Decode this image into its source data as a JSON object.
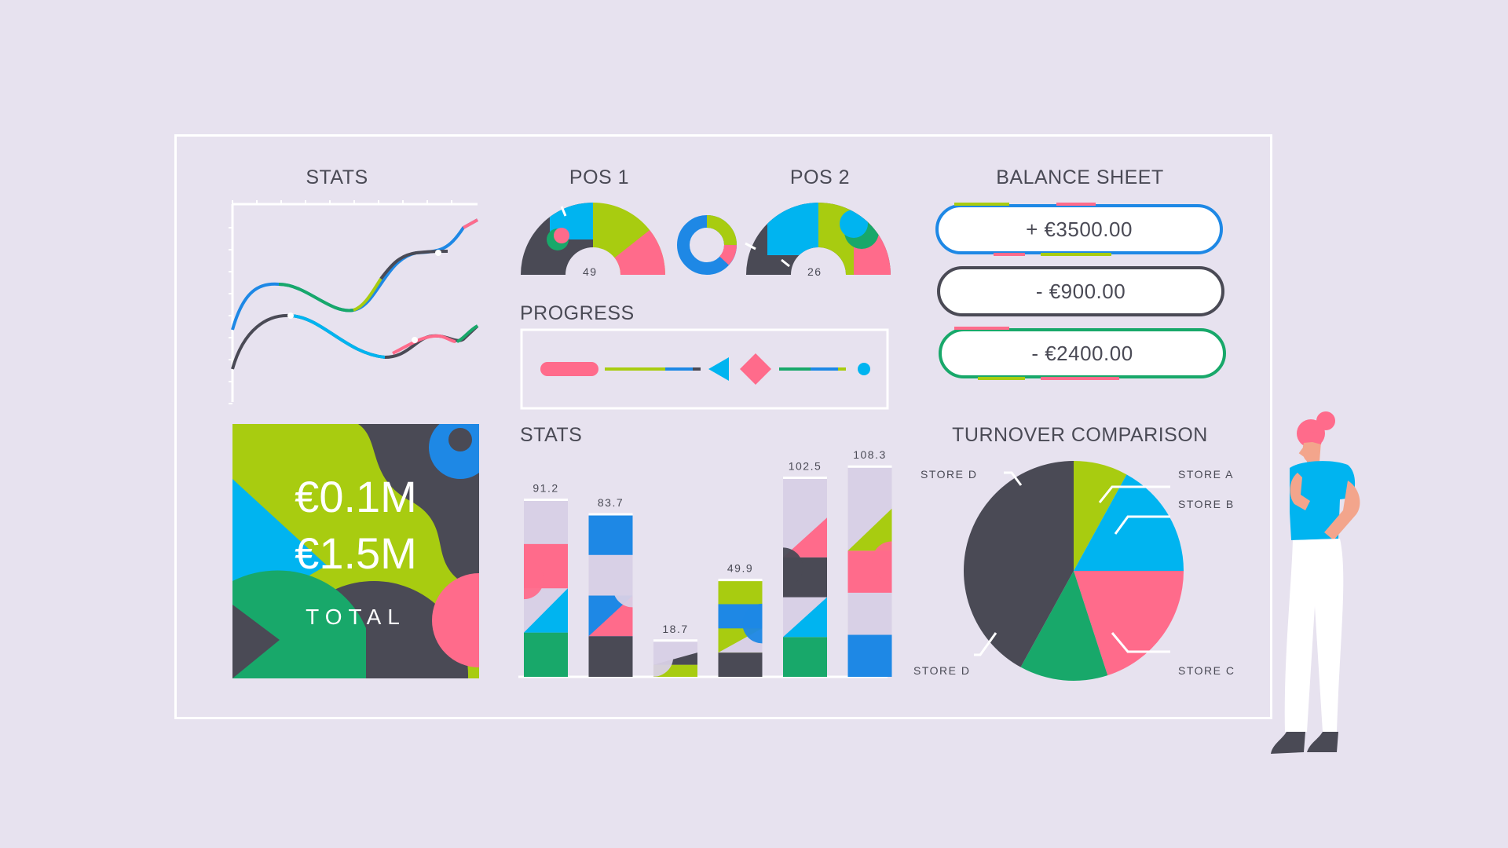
{
  "titles": {
    "stats_line": "STATS",
    "pos1": "POS 1",
    "pos2": "POS 2",
    "balance": "BALANCE SHEET",
    "progress": "PROGRESS",
    "stats_bar": "STATS",
    "turnover": "TURNOVER COMPARISON"
  },
  "gauges": {
    "pos1_value": "49",
    "pos2_value": "26"
  },
  "balance_items": [
    "+ €3500.00",
    "- €900.00",
    "- €2400.00"
  ],
  "totals": {
    "line1": "€0.1M",
    "line2": "€1.5M",
    "label": "TOTAL"
  },
  "pie_labels": {
    "store_a": "STORE A",
    "store_b": "STORE B",
    "store_c": "STORE C",
    "store_d_top": "STORE D",
    "store_d_bottom": "STORE D"
  },
  "colors": {
    "lime": "#a8cc10",
    "blue": "#1e88e5",
    "cyan": "#00b4f0",
    "pink": "#ff6b8b",
    "green": "#18a86a",
    "dark": "#4a4a55",
    "lavender": "#d8d0e6"
  },
  "chart_data": [
    {
      "type": "bar",
      "title": "STATS",
      "categories": [
        "",
        "",
        "",
        "",
        "",
        ""
      ],
      "values": [
        91.2,
        83.7,
        18.7,
        49.9,
        102.5,
        108.3
      ],
      "ylim": [
        0,
        110
      ]
    },
    {
      "type": "pie",
      "title": "TURNOVER COMPARISON",
      "categories": [
        "STORE A",
        "STORE B",
        "STORE C",
        "STORE D",
        "STORE D"
      ],
      "values": [
        8,
        17,
        20,
        13,
        42
      ]
    },
    {
      "type": "line",
      "title": "STATS",
      "series": [
        {
          "values": [
            0.35,
            0.55,
            0.5,
            0.35,
            0.6,
            0.8,
            0.82,
            0.95
          ]
        },
        {
          "values": [
            0.2,
            0.42,
            0.38,
            0.25,
            0.22,
            0.3,
            0.25,
            0.35
          ]
        }
      ],
      "grid": false
    }
  ]
}
